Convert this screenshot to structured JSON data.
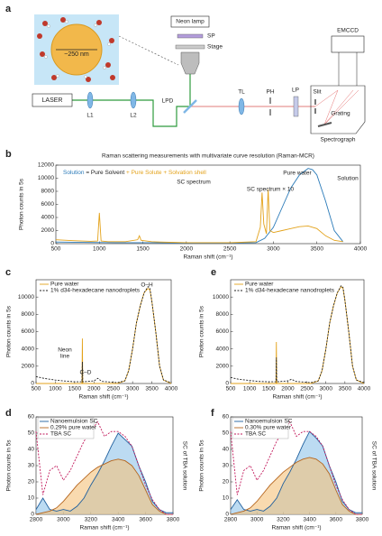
{
  "diagram": {
    "panel": "a",
    "size": "~250 nm",
    "lamp": "Neon lamp",
    "sp": "SP",
    "stage": "Stage",
    "laser": "LASER",
    "l1": "L1",
    "l2": "L2",
    "lpd": "LPD",
    "tl": "TL",
    "ph": "PH",
    "lp": "LP",
    "slit": "Slit",
    "grating": "Grating",
    "emccd": "EMCCD",
    "spectrograph": "Spectrograph"
  },
  "chart_data": [
    {
      "type": "line",
      "panel": "b",
      "title": "Raman scattering measurements with multivariate curve resolution (Raman-MCR)",
      "equation": [
        "Solution",
        "=",
        "Pure Solvent",
        "+",
        "Pure Solute",
        "+",
        "Solvation shell"
      ],
      "xlabel": "Raman shift (cm⁻¹)",
      "ylabel": "Photon counts in 5s",
      "xlim": [
        500,
        4000
      ],
      "xticks": [
        500,
        1000,
        1500,
        2000,
        2500,
        3000,
        3500,
        4000
      ],
      "ylim": [
        0,
        12000
      ],
      "yticks": [
        0,
        2000,
        4000,
        6000,
        8000,
        10000,
        12000
      ],
      "series": [
        {
          "name": "Solution",
          "color": "#2a7ab8",
          "x": [
            500,
            800,
            1200,
            1600,
            2000,
            2400,
            2800,
            2900,
            3000,
            3100,
            3200,
            3300,
            3400,
            3450,
            3500,
            3600,
            3700,
            3800
          ],
          "values": [
            250,
            200,
            150,
            150,
            100,
            100,
            150,
            800,
            2500,
            5500,
            8500,
            10500,
            11500,
            11300,
            10500,
            6500,
            2000,
            300
          ]
        },
        {
          "name": "SC spectrum",
          "color": "#e3a21a",
          "x": [
            500,
            700,
            900,
            980,
            1000,
            1020,
            1100,
            1300,
            1440,
            1460,
            1480,
            1600,
            1700,
            2000,
            2500,
            2800,
            2850,
            2870,
            2890,
            2920,
            2940,
            2960,
            3000,
            3100,
            3200,
            3300,
            3400,
            3500,
            3600,
            3700,
            3800
          ],
          "values": [
            600,
            450,
            350,
            400,
            4700,
            400,
            300,
            300,
            600,
            1200,
            500,
            300,
            250,
            150,
            150,
            300,
            2500,
            7800,
            3000,
            1500,
            8300,
            2000,
            1700,
            2000,
            2300,
            2600,
            2700,
            2300,
            1200,
            500,
            300
          ]
        }
      ],
      "annotations": [
        {
          "text": "Pure water",
          "color": "#222"
        },
        {
          "text": "SC spectrum × 10",
          "color": "#e3a21a"
        }
      ]
    },
    {
      "type": "line",
      "panel": "c",
      "xlabel": "Raman shift (cm⁻¹)",
      "ylabel": "Photon counts in 5s",
      "xlim": [
        500,
        4000
      ],
      "xticks": [
        500,
        1000,
        1500,
        2000,
        2500,
        3000,
        3500,
        4000
      ],
      "ylim": [
        0,
        12000
      ],
      "yticks": [
        0,
        2000,
        4000,
        6000,
        8000,
        10000
      ],
      "legend": "upper left",
      "series": [
        {
          "name": "Pure water",
          "color": "#e3a21a",
          "x": [
            500,
            1000,
            1600,
            1690,
            1700,
            1710,
            2000,
            2600,
            2800,
            2900,
            3000,
            3100,
            3200,
            3300,
            3400,
            3450,
            3500,
            3600,
            3700,
            3800,
            4000
          ],
          "values": [
            0,
            0,
            0,
            0,
            5200,
            0,
            0,
            0,
            300,
            1500,
            4000,
            7000,
            9000,
            10500,
            11000,
            10800,
            9500,
            6000,
            2000,
            400,
            0
          ]
        },
        {
          "name": "1% d34-hexadecane nanodroplets",
          "color": "#222",
          "style": "dashed",
          "x": [
            500,
            700,
            1000,
            1200,
            1500,
            1690,
            1700,
            1710,
            2000,
            2100,
            2200,
            2600,
            2800,
            2900,
            3000,
            3100,
            3200,
            3300,
            3400,
            3450,
            3500,
            3600,
            3700,
            3800,
            4000
          ],
          "values": [
            800,
            600,
            400,
            300,
            200,
            200,
            2500,
            200,
            300,
            600,
            250,
            100,
            300,
            1500,
            4000,
            7000,
            9000,
            10500,
            11200,
            11000,
            9500,
            6000,
            2000,
            400,
            100
          ]
        }
      ],
      "annotations": [
        {
          "text": "O–H",
          "color": "#222"
        },
        {
          "text": "Neon",
          "color": "#222"
        },
        {
          "text": "line",
          "color": "#222"
        },
        {
          "text": "C–D",
          "color": "#222"
        }
      ]
    },
    {
      "type": "line",
      "panel": "d",
      "xlabel": "Raman shift (cm⁻¹)",
      "ylabel": "Photon counts in 5s",
      "y2label": "SC of TBA solution",
      "x": [
        2800,
        2850,
        2900,
        2950,
        3000,
        3050,
        3100,
        3150,
        3200,
        3250,
        3300,
        3350,
        3400,
        3450,
        3500,
        3550,
        3600,
        3650,
        3700,
        3750,
        3800
      ],
      "xlim": [
        2800,
        3800
      ],
      "xticks": [
        2800,
        3000,
        3200,
        3400,
        3600,
        3800
      ],
      "ylim": [
        0,
        60
      ],
      "yticks": [
        0,
        10,
        20,
        30,
        40,
        50,
        60
      ],
      "y2lim": [
        0,
        1
      ],
      "legend": "upper left",
      "series": [
        {
          "name": "Nanoemulsion SC",
          "color": "#1f5f9e",
          "fill": "#8fc3ea",
          "values": [
            3,
            10,
            3,
            2,
            3,
            2,
            5,
            10,
            18,
            25,
            33,
            42,
            50,
            46,
            42,
            30,
            20,
            8,
            3,
            1,
            1
          ]
        },
        {
          "name": "0.29% pure water",
          "color": "#b5651d",
          "fill": "#f5c27a",
          "values": [
            0,
            1,
            2,
            4,
            8,
            13,
            18,
            22,
            26,
            29,
            31,
            33,
            34,
            33,
            30,
            24,
            15,
            6,
            2,
            0,
            0
          ]
        },
        {
          "name": "TBA SC",
          "color": "#c2185b",
          "style": "dashed",
          "axis": "y2",
          "values": [
            0.85,
            0.2,
            0.45,
            0.5,
            0.35,
            0.45,
            0.6,
            0.75,
            0.85,
            0.95,
            0.8,
            0.85,
            0.85,
            0.8,
            0.7,
            0.5,
            0.3,
            0.15,
            0.05,
            0,
            0
          ]
        }
      ]
    },
    {
      "type": "line",
      "panel": "e",
      "xlabel": "Raman shift (cm⁻¹)",
      "ylabel": "Photon counts in 5s",
      "xlim": [
        500,
        4000
      ],
      "xticks": [
        500,
        1000,
        1500,
        2000,
        2500,
        3000,
        3500,
        4000
      ],
      "ylim": [
        0,
        12000
      ],
      "yticks": [
        0,
        2000,
        4000,
        6000,
        8000,
        10000
      ],
      "legend": "upper left",
      "series": [
        {
          "name": "Pure water",
          "color": "#e3a21a",
          "x": [
            500,
            1000,
            1600,
            1690,
            1700,
            1710,
            2000,
            2600,
            2800,
            2900,
            3000,
            3100,
            3200,
            3300,
            3400,
            3450,
            3500,
            3600,
            3700,
            3800,
            4000
          ],
          "values": [
            0,
            0,
            0,
            0,
            4800,
            0,
            0,
            0,
            300,
            1500,
            4000,
            7000,
            9000,
            10500,
            11200,
            11000,
            9600,
            6000,
            2000,
            400,
            0
          ]
        },
        {
          "name": "1% d34-hexadecane nanodroplets",
          "color": "#222",
          "style": "dashed",
          "x": [
            500,
            700,
            1000,
            1200,
            1500,
            1690,
            1700,
            1710,
            2000,
            2100,
            2200,
            2600,
            2800,
            2900,
            3000,
            3100,
            3200,
            3300,
            3400,
            3450,
            3500,
            3600,
            3700,
            3800,
            4000
          ],
          "values": [
            700,
            500,
            350,
            250,
            200,
            200,
            3000,
            200,
            300,
            500,
            250,
            100,
            300,
            1500,
            4000,
            7000,
            9000,
            10500,
            11300,
            11100,
            9600,
            6000,
            2000,
            400,
            100
          ]
        }
      ]
    },
    {
      "type": "line",
      "panel": "f",
      "xlabel": "Raman shift (cm⁻¹)",
      "ylabel": "Photon counts in 5s",
      "y2label": "SC of TBA solution",
      "x": [
        2800,
        2850,
        2900,
        2950,
        3000,
        3050,
        3100,
        3150,
        3200,
        3250,
        3300,
        3350,
        3400,
        3450,
        3500,
        3550,
        3600,
        3650,
        3700,
        3750,
        3800
      ],
      "xlim": [
        2800,
        3800
      ],
      "xticks": [
        2800,
        3000,
        3200,
        3400,
        3600,
        3800
      ],
      "ylim": [
        0,
        60
      ],
      "yticks": [
        0,
        10,
        20,
        30,
        40,
        50,
        60
      ],
      "y2lim": [
        0,
        1
      ],
      "legend": "upper left",
      "series": [
        {
          "name": "Nanoemulsion SC",
          "color": "#1f5f9e",
          "fill": "#8fc3ea",
          "values": [
            3,
            9,
            3,
            2,
            3,
            2,
            5,
            10,
            19,
            26,
            34,
            43,
            51,
            47,
            42,
            30,
            20,
            8,
            3,
            1,
            1
          ]
        },
        {
          "name": "0.30% pure water",
          "color": "#b5651d",
          "fill": "#f5c27a",
          "values": [
            0,
            1,
            2,
            4,
            8,
            13,
            18,
            22,
            26,
            29,
            32,
            34,
            35,
            34,
            31,
            25,
            15,
            6,
            2,
            0,
            0
          ]
        },
        {
          "name": "TBA SC",
          "color": "#c2185b",
          "style": "dashed",
          "axis": "y2",
          "values": [
            0.85,
            0.2,
            0.45,
            0.5,
            0.35,
            0.45,
            0.6,
            0.75,
            0.85,
            0.95,
            0.8,
            0.85,
            0.85,
            0.8,
            0.7,
            0.5,
            0.3,
            0.15,
            0.05,
            0,
            0
          ]
        }
      ]
    }
  ]
}
